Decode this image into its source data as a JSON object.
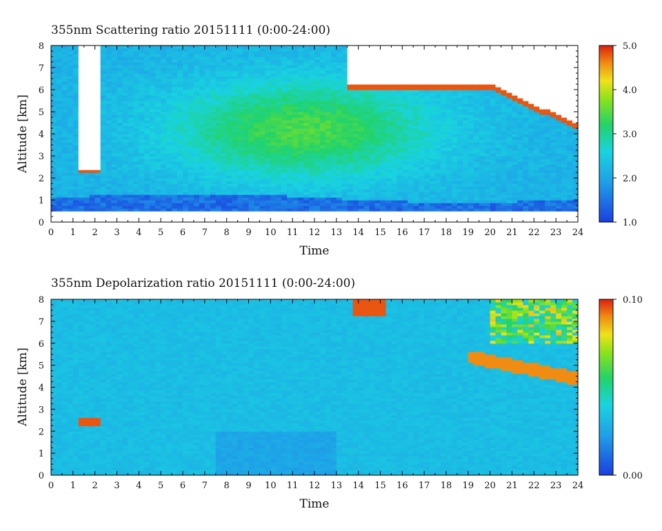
{
  "chart_data": [
    {
      "type": "heatmap",
      "title": "355nm Scattering ratio  20151111 (0:00-24:00)",
      "xlabel": "Time",
      "ylabel": "Altitude [km]",
      "xlim": [
        0,
        24
      ],
      "ylim": [
        0,
        8
      ],
      "x_ticks": [
        "0",
        "1",
        "2",
        "3",
        "4",
        "5",
        "6",
        "7",
        "8",
        "9",
        "10",
        "11",
        "12",
        "13",
        "14",
        "15",
        "16",
        "17",
        "18",
        "19",
        "20",
        "21",
        "22",
        "23",
        "24"
      ],
      "y_ticks": [
        "0",
        "1",
        "2",
        "3",
        "4",
        "5",
        "6",
        "7",
        "8"
      ],
      "colorbar": {
        "range": [
          1.0,
          5.0
        ],
        "ticks": [
          "1.0",
          "2.0",
          "3.0",
          "4.0",
          "5.0"
        ]
      },
      "colors": {
        "low": "#1a4fd8",
        "mid": "#18c8e6",
        "high": "#e23010",
        "masked": "#ffffff"
      }
    },
    {
      "type": "heatmap",
      "title": "355nm Depolarization ratio  20151111 (0:00-24:00)",
      "xlabel": "Time",
      "ylabel": "Altitude [km]",
      "xlim": [
        0,
        24
      ],
      "ylim": [
        0,
        8
      ],
      "x_ticks": [
        "0",
        "1",
        "2",
        "3",
        "4",
        "5",
        "6",
        "7",
        "8",
        "9",
        "10",
        "11",
        "12",
        "13",
        "14",
        "15",
        "16",
        "17",
        "18",
        "19",
        "20",
        "21",
        "22",
        "23",
        "24"
      ],
      "y_ticks": [
        "0",
        "1",
        "2",
        "3",
        "4",
        "5",
        "6",
        "7",
        "8"
      ],
      "colorbar": {
        "range": [
          0.0,
          0.1
        ],
        "ticks": [
          "0.00",
          "0.10"
        ]
      },
      "colors": {
        "low": "#1a4fd8",
        "mid": "#18c8e6",
        "high": "#e23010",
        "masked": "#ffffff"
      }
    }
  ]
}
